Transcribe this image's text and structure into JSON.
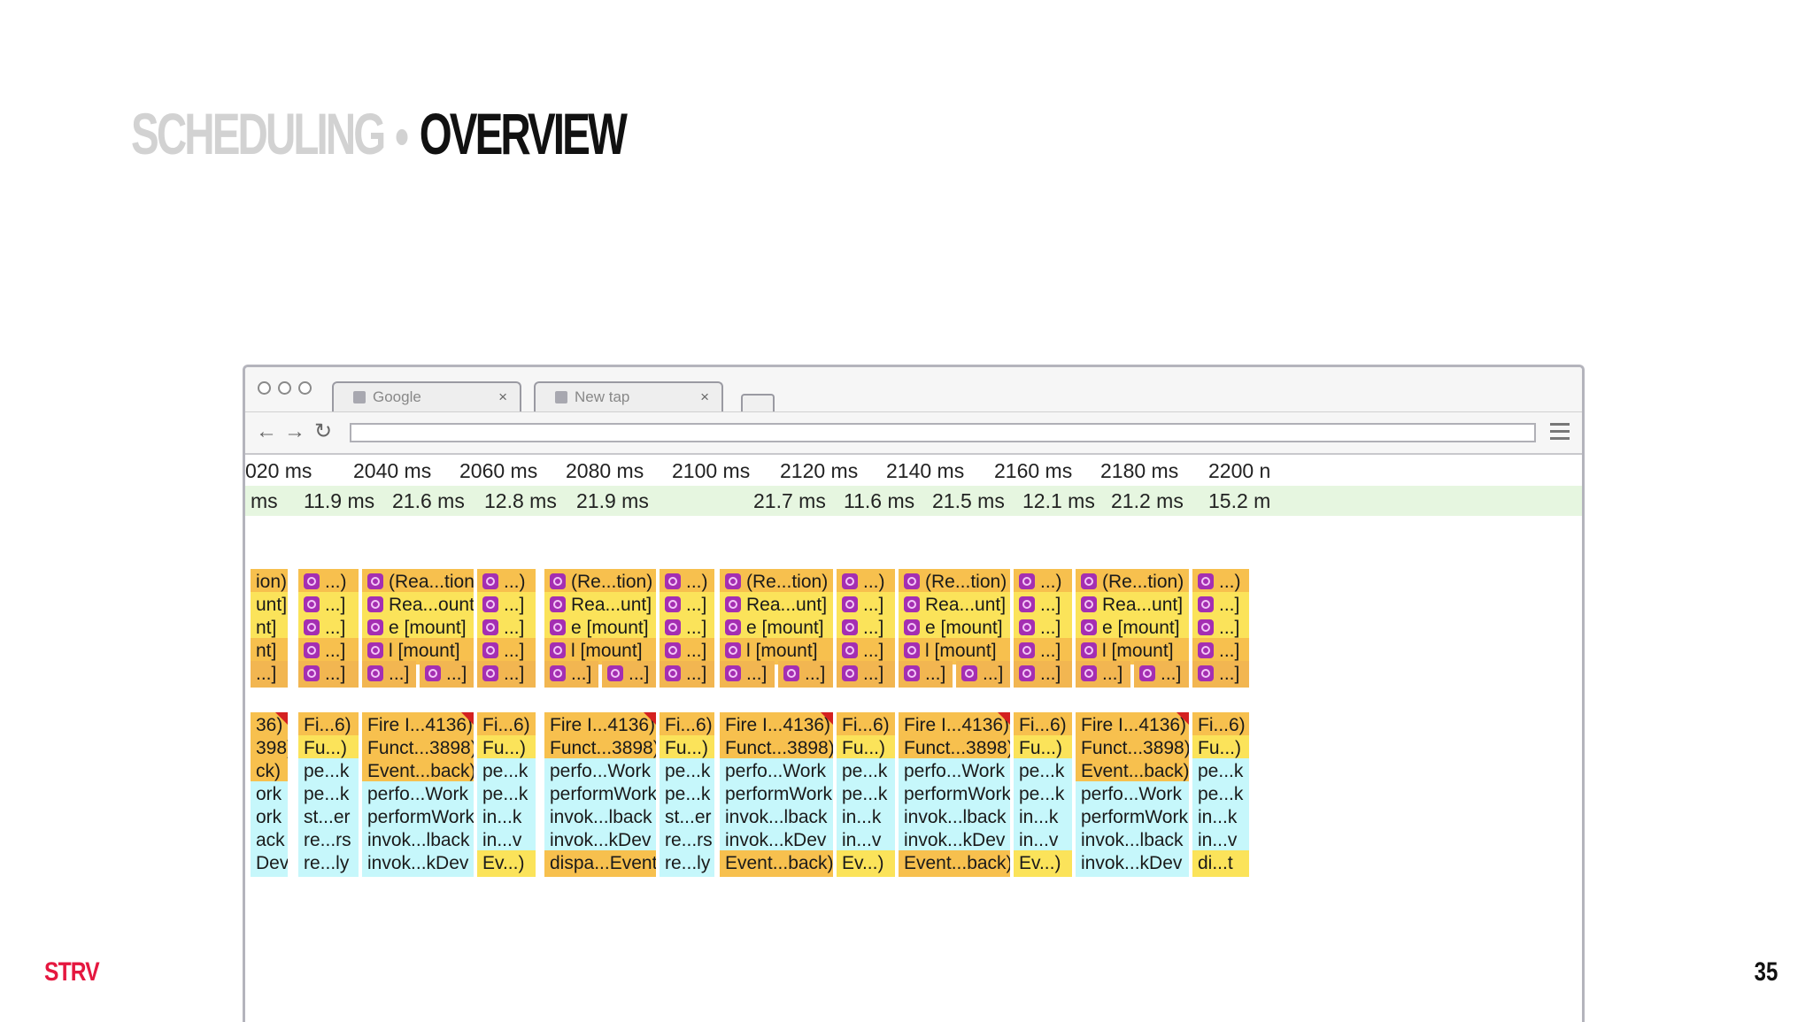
{
  "slide": {
    "title_section": "SCHEDULING",
    "title_topic": "OVERVIEW",
    "brand": "STRV",
    "page_number": "35"
  },
  "browser": {
    "tabs": [
      {
        "label": "Google",
        "close": "×"
      },
      {
        "label": "New tap",
        "close": "×"
      }
    ],
    "icons": [
      "back-icon",
      "forward-icon",
      "reload-icon",
      "menu-icon"
    ],
    "back_glyph": "←",
    "forward_glyph": "→",
    "reload_glyph": "↻"
  },
  "timeline": {
    "ruler": [
      "020 ms",
      "2040 ms",
      "2060 ms",
      "2080 ms",
      "2100 ms",
      "2120 ms",
      "2140 ms",
      "2160 ms",
      "2180 ms",
      "2200 n"
    ],
    "frames": [
      "ms",
      "11.9 ms",
      "21.6 ms",
      "12.8 ms",
      "21.9 ms",
      "21.7 ms",
      "11.6 ms",
      "21.5 ms",
      "12.1 ms",
      "21.2 ms",
      "15.2 m"
    ]
  },
  "flame_upper": {
    "rows": [
      [
        "ion)",
        "...)",
        "(Rea...tion)",
        "...)",
        "(Re...tion)",
        "...)",
        "(Re...tion)",
        "...)",
        "(Re...tion)",
        "...)",
        "(Re...tion)",
        "...)"
      ],
      [
        "unt]",
        "...]",
        "Rea...ount]",
        "...]",
        "Rea...unt]",
        "...]",
        "Rea...unt]",
        "...]",
        "Rea...unt]",
        "...]",
        "Rea...unt]",
        "...]"
      ],
      [
        "nt]",
        "...]",
        "e [mount]",
        "...]",
        "e [mount]",
        "...]",
        "e [mount]",
        "...]",
        "e [mount]",
        "...]",
        "e [mount]",
        "...]"
      ],
      [
        "nt]",
        "...]",
        "l [mount]",
        "...]",
        "l [mount]",
        "...]",
        "l [mount]",
        "...]",
        "l [mount]",
        "...]",
        "l [mount]",
        "...]"
      ],
      [
        "...]",
        "...]",
        "...]",
        "...]",
        "...]",
        "...]",
        "...]",
        "...]",
        "...]",
        "...]",
        "...]",
        "...]",
        "...]",
        "...]",
        "...]",
        "...]",
        "...]"
      ]
    ]
  },
  "flame_lower": {
    "rows": [
      [
        "36)",
        "Fi...6)",
        "Fire I...4136)",
        "Fi...6)",
        "Fire I...4136)",
        "Fi...6)",
        "Fire I...4136)",
        "Fi...6)",
        "Fire I...4136)",
        "Fi...6)",
        "Fire I...4136)",
        "Fi...6)"
      ],
      [
        "398)",
        "Fu...)",
        "Funct...3898)",
        "Fu...)",
        "Funct...3898)",
        "Fu...)",
        "Funct...3898)",
        "Fu...)",
        "Funct...3898)",
        "Fu...)",
        "Funct...3898)",
        "Fu...)"
      ],
      [
        "ck)",
        "pe...k",
        "Event...back)",
        "pe...k",
        "perfo...Work",
        "pe...k",
        "perfo...Work",
        "pe...k",
        "perfo...Work",
        "pe...k",
        "Event...back)",
        "pe...k"
      ],
      [
        "ork",
        "pe...k",
        "perfo...Work",
        "pe...k",
        "performWork",
        "pe...k",
        "performWork",
        "pe...k",
        "performWork",
        "pe...k",
        "perfo...Work",
        "pe...k"
      ],
      [
        "ork",
        "st...er",
        "performWork",
        "in...k",
        "invok...lback",
        "st...er",
        "invok...lback",
        "in...k",
        "invok...lback",
        "in...k",
        "performWork",
        "in...k"
      ],
      [
        "ack",
        "re...rs",
        "invok...lback",
        "in...v",
        "invok...kDev",
        "re...rs",
        "invok...kDev",
        "in...v",
        "invok...kDev",
        "in...v",
        "invok...lback",
        "in...v"
      ],
      [
        "Dev",
        "re...ly",
        "invok...kDev",
        "Ev...)",
        "dispa...Event",
        "re...ly",
        "Event...back)",
        "Ev...)",
        "Event...back)",
        "Ev...)",
        "invok...kDev",
        "di...t"
      ]
    ]
  },
  "colors": {
    "brand": "#e5173f",
    "title_grey": "#d2d2d2",
    "flame_orange": "#f7c04e",
    "flame_yellow": "#fbe35a",
    "flame_cyan": "#c6f7fb",
    "frame_green": "#e6f6e0",
    "react_purple": "#a42eb2",
    "warning_red": "#d42020"
  }
}
